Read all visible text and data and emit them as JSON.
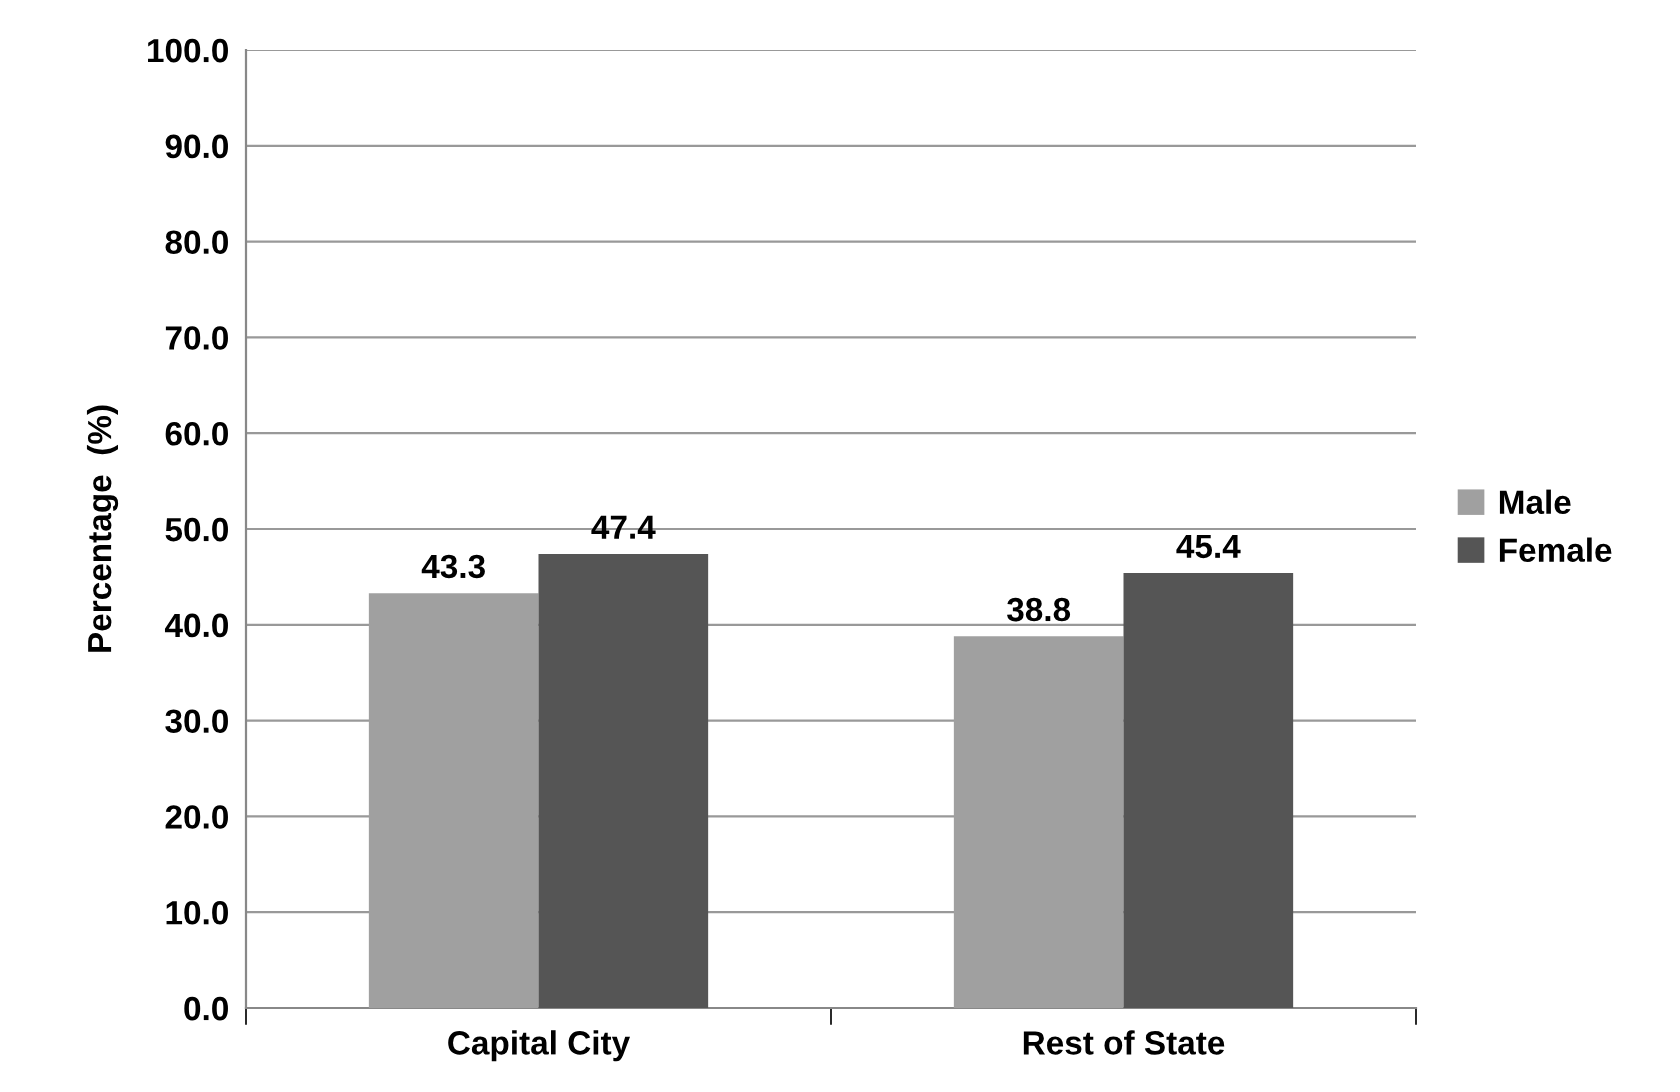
{
  "chart_data": {
    "type": "bar",
    "ylabel": "Percentage  (%)",
    "categories": [
      "Capital City",
      "Rest of State"
    ],
    "series": [
      {
        "name": "Male",
        "color": "#a0a0a0",
        "values": [
          43.3,
          38.8
        ]
      },
      {
        "name": "Female",
        "color": "#555555",
        "values": [
          47.4,
          45.4
        ]
      }
    ],
    "ylim": [
      0,
      100
    ],
    "yticks": [
      {
        "value": 0,
        "label": "0.0"
      },
      {
        "value": 10,
        "label": "10.0"
      },
      {
        "value": 20,
        "label": "20.0"
      },
      {
        "value": 30,
        "label": "30.0"
      },
      {
        "value": 40,
        "label": "40.0"
      },
      {
        "value": 50,
        "label": "50.0"
      },
      {
        "value": 60,
        "label": "60.0"
      },
      {
        "value": 70,
        "label": "70.0"
      },
      {
        "value": 80,
        "label": "80.0"
      },
      {
        "value": 90,
        "label": "90.0"
      },
      {
        "value": 100,
        "label": "100.0"
      }
    ],
    "grid": "y",
    "legend": "right",
    "data_labels": true
  }
}
